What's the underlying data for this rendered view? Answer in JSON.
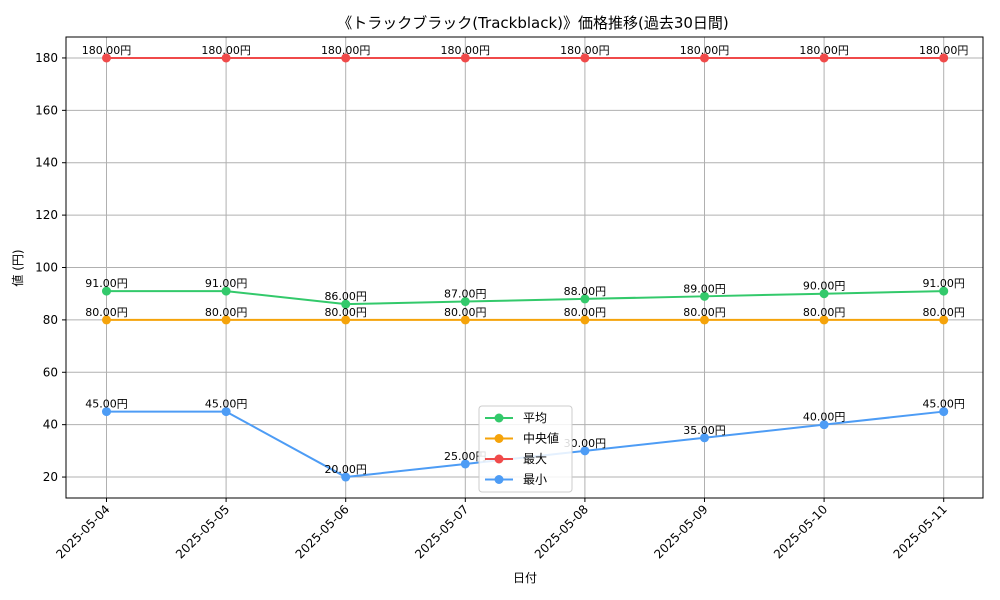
{
  "chart_data": {
    "type": "line",
    "title": "《トラックブラック(Trackblack)》価格推移(過去30日間)",
    "xlabel": "日付",
    "ylabel": "値 (円)",
    "categories": [
      "2025-05-04",
      "2025-05-05",
      "2025-05-06",
      "2025-05-07",
      "2025-05-08",
      "2025-05-09",
      "2025-05-10",
      "2025-05-11"
    ],
    "ylim": [
      12,
      188
    ],
    "yticks": [
      20,
      40,
      60,
      80,
      100,
      120,
      140,
      160,
      180
    ],
    "grid": true,
    "legend_position": "bottom-center",
    "value_suffix": "円",
    "series": [
      {
        "name": "平均",
        "color": "#33c96b",
        "values": [
          91,
          91,
          86,
          87,
          88,
          89,
          90,
          91
        ],
        "labels": [
          "91.00円",
          "91.00円",
          "86.00円",
          "87.00円",
          "88.00円",
          "89.00円",
          "90.00円",
          "91.00円"
        ]
      },
      {
        "name": "中央値",
        "color": "#f5a30a",
        "values": [
          80,
          80,
          80,
          80,
          80,
          80,
          80,
          80
        ],
        "labels": [
          "80.00円",
          "80.00円",
          "80.00円",
          "80.00円",
          "80.00円",
          "80.00円",
          "80.00円",
          "80.00円"
        ]
      },
      {
        "name": "最大",
        "color": "#f04a4a",
        "values": [
          180,
          180,
          180,
          180,
          180,
          180,
          180,
          180
        ],
        "labels": [
          "180.00円",
          "180.00円",
          "180.00円",
          "180.00円",
          "180.00円",
          "180.00円",
          "180.00円",
          "180.00円"
        ]
      },
      {
        "name": "最小",
        "color": "#4d9cf5",
        "values": [
          45,
          45,
          20,
          25,
          30,
          35,
          40,
          45
        ],
        "labels": [
          "45.00円",
          "45.00円",
          "20.00円",
          "25.00円",
          "30.00円",
          "35.00円",
          "40.00円",
          "45.00円"
        ]
      }
    ]
  }
}
